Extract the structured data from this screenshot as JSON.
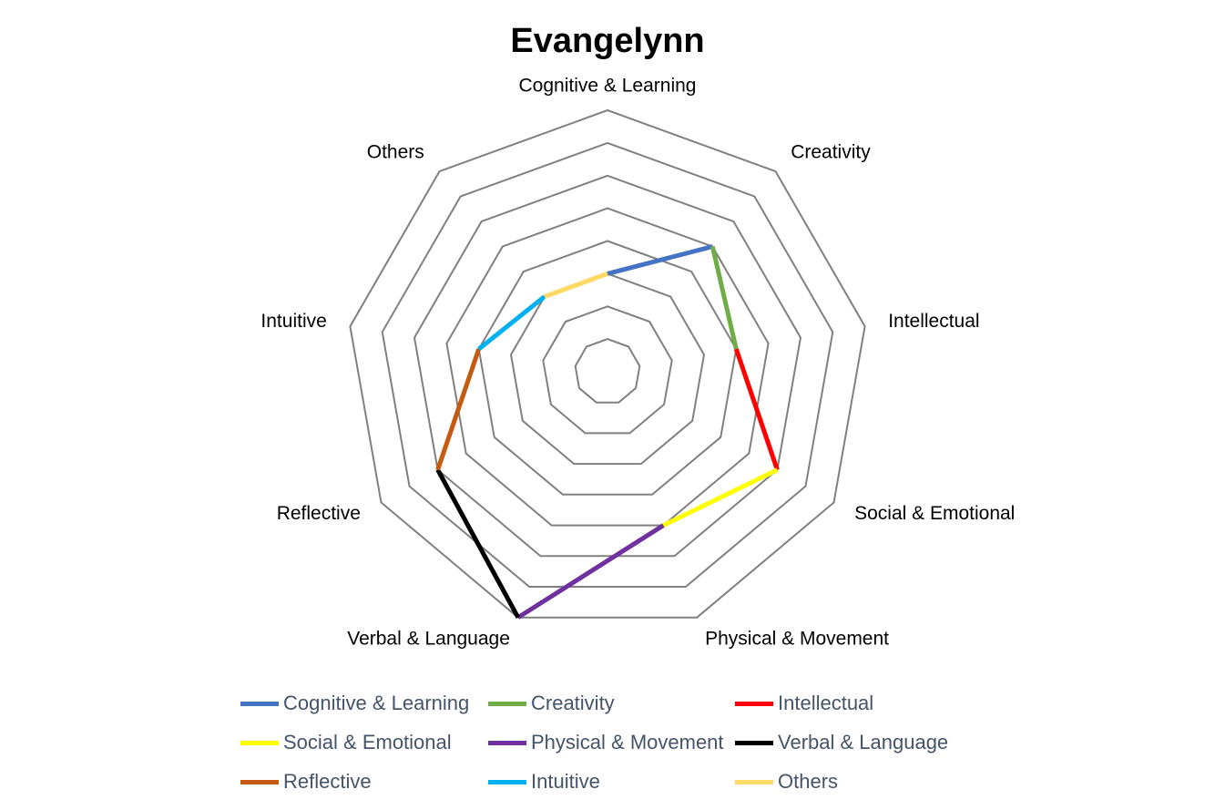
{
  "chart_data": {
    "type": "radar",
    "title": "Evangelynn",
    "categories": [
      "Cognitive & Learning",
      "Creativity",
      "Intellectual",
      "Social & Emotional",
      "Physical & Movement",
      "Verbal & Language",
      "Reflective",
      "Intuitive",
      "Others"
    ],
    "values": [
      3,
      5,
      4,
      6,
      5,
      8,
      6,
      4,
      3
    ],
    "rlim": [
      0,
      8
    ],
    "ring_count": 8,
    "grid": true,
    "segment_colors": [
      "#4472c4",
      "#70ad47",
      "#ff0000",
      "#ffff00",
      "#7030a0",
      "#000000",
      "#c55a11",
      "#00b0f0",
      "#ffd966"
    ],
    "grid_color": "#808080",
    "legend_position": "bottom"
  },
  "legend": [
    {
      "label": "Cognitive & Learning",
      "color": "#4472c4"
    },
    {
      "label": "Creativity",
      "color": "#70ad47"
    },
    {
      "label": "Intellectual",
      "color": "#ff0000"
    },
    {
      "label": "Social & Emotional",
      "color": "#ffff00"
    },
    {
      "label": "Physical & Movement",
      "color": "#7030a0"
    },
    {
      "label": "Verbal & Language",
      "color": "#000000"
    },
    {
      "label": "Reflective",
      "color": "#c55a11"
    },
    {
      "label": "Intuitive",
      "color": "#00b0f0"
    },
    {
      "label": "Others",
      "color": "#ffd966"
    }
  ]
}
